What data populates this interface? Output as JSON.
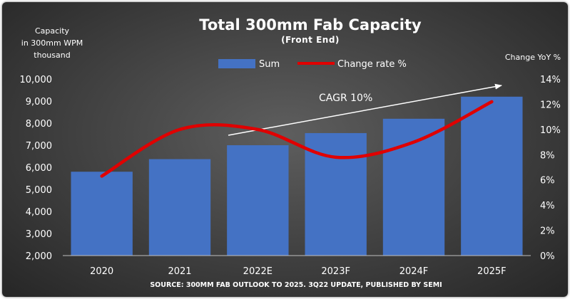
{
  "chart_data": {
    "type": "bar",
    "title": "Total 300mm Fab Capacity",
    "subtitle": "(Front End)",
    "ylabel_left": [
      "Capacity",
      "in 300mm WPM",
      "thousand"
    ],
    "ylabel_right": "Change YoY %",
    "categories": [
      "2020",
      "2021",
      "2022E",
      "2023F",
      "2024F",
      "2025F"
    ],
    "series": [
      {
        "name": "Sum",
        "type": "bar",
        "axis": "left",
        "color": "#4472c4",
        "values": [
          5800,
          6370,
          7000,
          7550,
          8200,
          9200
        ]
      },
      {
        "name": "Change rate %",
        "type": "line",
        "axis": "right",
        "color": "#e00000",
        "smooth": true,
        "values": [
          6.3,
          10.0,
          10.0,
          7.8,
          9.0,
          12.2
        ]
      }
    ],
    "ylim_left": [
      2000,
      10000
    ],
    "yticks_left": [
      "2,000",
      "3,000",
      "4,000",
      "5,000",
      "6,000",
      "7,000",
      "8,000",
      "9,000",
      "10,000"
    ],
    "ylim_right": [
      0,
      14
    ],
    "yticks_right": [
      "0%",
      "2%",
      "4%",
      "6%",
      "8%",
      "10%",
      "12%",
      "14%"
    ],
    "annotation": {
      "text": "CAGR 10%",
      "color": "#ffffff"
    },
    "legend": {
      "placement": "top-center"
    },
    "grid": false,
    "source": "SOURCE: 300MM FAB OUTLOOK TO 2025. 3Q22 UPDATE, PUBLISHED BY SEMI"
  }
}
